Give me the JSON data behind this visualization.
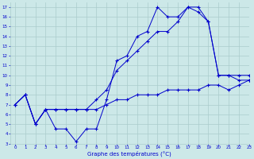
{
  "title": "Graphe des températures (°C)",
  "background_color": "#cce8e8",
  "grid_color": "#aacccc",
  "line_color": "#0000cc",
  "xlim": [
    -0.5,
    23
  ],
  "ylim": [
    3,
    17.5
  ],
  "xticks": [
    0,
    1,
    2,
    3,
    4,
    5,
    6,
    7,
    8,
    9,
    10,
    11,
    12,
    13,
    14,
    15,
    16,
    17,
    18,
    19,
    20,
    21,
    22,
    23
  ],
  "yticks": [
    3,
    4,
    5,
    6,
    7,
    8,
    9,
    10,
    11,
    12,
    13,
    14,
    15,
    16,
    17
  ],
  "line1_x": [
    0,
    1,
    2,
    3,
    4,
    5,
    6,
    7,
    8,
    9,
    10,
    11,
    12,
    13,
    14,
    15,
    16,
    17,
    18,
    19,
    20,
    21,
    22,
    23
  ],
  "line1_y": [
    7.0,
    8.0,
    5.0,
    6.5,
    6.5,
    6.5,
    6.5,
    6.5,
    6.5,
    7.0,
    7.5,
    7.5,
    8.0,
    8.0,
    8.0,
    8.5,
    8.5,
    8.5,
    8.5,
    9.0,
    9.0,
    8.5,
    9.0,
    9.5
  ],
  "line2_x": [
    0,
    1,
    2,
    3,
    4,
    5,
    6,
    7,
    8,
    9,
    10,
    11,
    12,
    13,
    14,
    15,
    16,
    17,
    18,
    19,
    20,
    21,
    22,
    23
  ],
  "line2_y": [
    7.0,
    8.0,
    5.0,
    6.5,
    4.5,
    4.5,
    3.2,
    4.5,
    4.5,
    7.5,
    11.5,
    12.0,
    14.0,
    14.5,
    17.0,
    16.0,
    16.0,
    17.0,
    16.5,
    15.5,
    10.0,
    10.0,
    9.5,
    9.5
  ],
  "line3_x": [
    0,
    1,
    2,
    3,
    4,
    5,
    6,
    7,
    8,
    9,
    10,
    11,
    12,
    13,
    14,
    15,
    16,
    17,
    18,
    19,
    20,
    21,
    22,
    23
  ],
  "line3_y": [
    7.0,
    8.0,
    5.0,
    6.5,
    6.5,
    6.5,
    6.5,
    6.5,
    7.5,
    8.5,
    10.5,
    11.5,
    12.5,
    13.5,
    14.5,
    14.5,
    15.5,
    17.0,
    17.0,
    15.5,
    10.0,
    10.0,
    10.0,
    10.0
  ]
}
